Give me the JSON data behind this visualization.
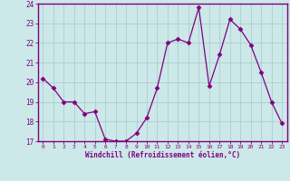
{
  "x": [
    0,
    1,
    2,
    3,
    4,
    5,
    6,
    7,
    8,
    9,
    10,
    11,
    12,
    13,
    14,
    15,
    16,
    17,
    18,
    19,
    20,
    21,
    22,
    23
  ],
  "y": [
    20.2,
    19.7,
    19.0,
    19.0,
    18.4,
    18.5,
    17.1,
    17.0,
    17.0,
    17.4,
    18.2,
    19.7,
    22.0,
    22.2,
    22.0,
    23.8,
    19.8,
    21.4,
    23.2,
    22.7,
    21.9,
    20.5,
    19.0,
    17.9
  ],
  "line_color": "#800080",
  "marker": "D",
  "marker_size": 2.5,
  "bg_color": "#cce8e8",
  "grid_color": "#aacfcf",
  "xlabel": "Windchill (Refroidissement éolien,°C)",
  "xlabel_color": "#800080",
  "tick_color": "#800080",
  "ylim": [
    17,
    24
  ],
  "xlim": [
    -0.5,
    23.5
  ],
  "yticks": [
    17,
    18,
    19,
    20,
    21,
    22,
    23,
    24
  ],
  "xticks": [
    0,
    1,
    2,
    3,
    4,
    5,
    6,
    7,
    8,
    9,
    10,
    11,
    12,
    13,
    14,
    15,
    16,
    17,
    18,
    19,
    20,
    21,
    22,
    23
  ],
  "spine_color": "#800080",
  "bottom_bar_color": "#800080"
}
